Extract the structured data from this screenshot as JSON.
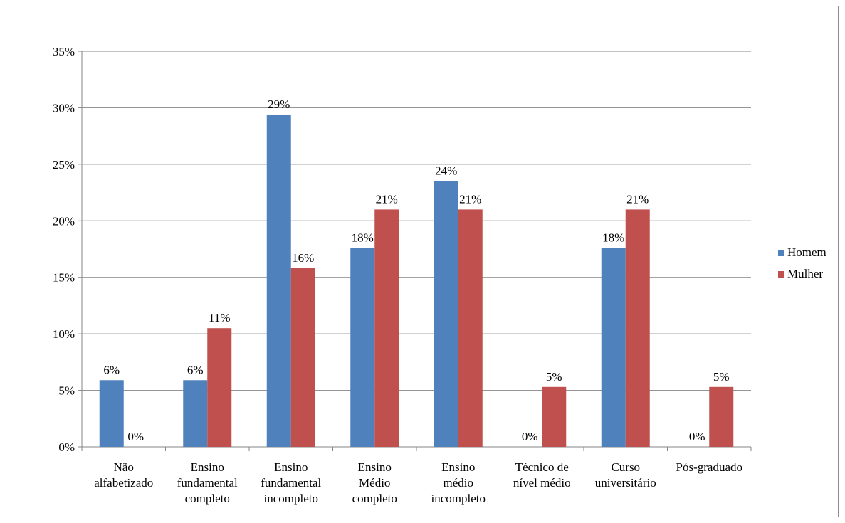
{
  "chart_data": {
    "type": "bar",
    "categories": [
      [
        "Não",
        "alfabetizado"
      ],
      [
        "Ensino",
        "fundamental",
        "completo"
      ],
      [
        "Ensino",
        "fundamental",
        "incompleto"
      ],
      [
        "Ensino",
        "Médio",
        "completo"
      ],
      [
        "Ensino",
        "médio",
        "incompleto"
      ],
      [
        "Técnico de",
        "nível médio"
      ],
      [
        "Curso",
        "universitário"
      ],
      [
        "Pós-graduado"
      ]
    ],
    "series": [
      {
        "name": "Homem",
        "color": "#4F81BD",
        "values": [
          5.9,
          5.9,
          29.4,
          17.6,
          23.5,
          0,
          17.6,
          0
        ],
        "labels": [
          "6%",
          "6%",
          "29%",
          "18%",
          "24%",
          "0%",
          "18%",
          "0%"
        ]
      },
      {
        "name": "Mulher",
        "color": "#C0504D",
        "values": [
          0,
          10.5,
          15.8,
          21.0,
          21.0,
          5.3,
          21.0,
          5.3
        ],
        "labels": [
          "0%",
          "11%",
          "16%",
          "21%",
          "21%",
          "5%",
          "21%",
          "5%"
        ]
      }
    ],
    "ylim": [
      0,
      35
    ],
    "yticks": [
      "0%",
      "5%",
      "10%",
      "15%",
      "20%",
      "25%",
      "30%",
      "35%"
    ],
    "grid": true,
    "legend": "right"
  }
}
